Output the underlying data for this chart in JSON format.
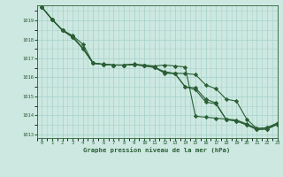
{
  "title": "Graphe pression niveau de la mer (hPa)",
  "bg_color": "#cce8e0",
  "grid_color": "#aad4cc",
  "line_color": "#2a5e35",
  "xlim": [
    -0.5,
    23
  ],
  "ylim": [
    1012.8,
    1019.8
  ],
  "yticks": [
    1013,
    1014,
    1015,
    1016,
    1017,
    1018,
    1019
  ],
  "xticks": [
    0,
    1,
    2,
    3,
    4,
    5,
    6,
    7,
    8,
    9,
    10,
    11,
    12,
    13,
    14,
    15,
    16,
    17,
    18,
    19,
    20,
    21,
    22,
    23
  ],
  "series": [
    [
      1019.7,
      1019.05,
      1018.5,
      1018.2,
      1017.75,
      1016.75,
      1016.7,
      1016.65,
      1016.65,
      1016.7,
      1016.65,
      1016.6,
      1016.65,
      1016.6,
      1016.55,
      1013.95,
      1013.9,
      1013.85,
      1013.8,
      1013.75,
      1013.55,
      1013.3,
      1013.35,
      1013.6
    ],
    [
      1019.7,
      1019.05,
      1018.5,
      1018.15,
      1017.55,
      1016.75,
      1016.68,
      1016.65,
      1016.65,
      1016.67,
      1016.62,
      1016.55,
      1016.25,
      1016.22,
      1016.2,
      1016.15,
      1015.6,
      1015.4,
      1014.85,
      1014.75,
      1013.8,
      1013.3,
      1013.35,
      1013.55
    ],
    [
      1019.7,
      1019.05,
      1018.48,
      1018.12,
      1017.52,
      1016.75,
      1016.68,
      1016.65,
      1016.65,
      1016.67,
      1016.62,
      1016.52,
      1016.22,
      1016.2,
      1015.5,
      1015.45,
      1014.85,
      1014.65,
      1013.78,
      1013.7,
      1013.5,
      1013.25,
      1013.28,
      1013.52
    ],
    [
      1019.7,
      1019.05,
      1018.48,
      1018.12,
      1017.52,
      1016.75,
      1016.68,
      1016.65,
      1016.65,
      1016.67,
      1016.62,
      1016.52,
      1016.3,
      1016.2,
      1015.5,
      1015.35,
      1014.7,
      1014.6,
      1013.78,
      1013.7,
      1013.5,
      1013.25,
      1013.28,
      1013.52
    ]
  ]
}
